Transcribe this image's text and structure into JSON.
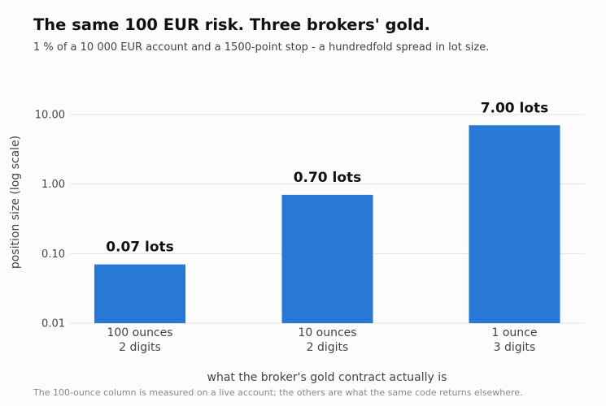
{
  "header": {
    "title": "The same 100 EUR risk. Three brokers' gold.",
    "subtitle": "1 % of a 10 000 EUR account and a 1500-point stop - a hundredfold spread in lot size."
  },
  "footnote": "The 100-ounce column is measured on a live account; the others are what the same code returns elsewhere.",
  "chart_data": {
    "type": "bar",
    "title": "The same 100 EUR risk. Three brokers' gold.",
    "subtitle": "1 % of a 10 000 EUR account and a 1500-point stop - a hundredfold spread in lot size.",
    "categories": [
      [
        "100 ounces",
        "2 digits"
      ],
      [
        "10 ounces",
        "2 digits"
      ],
      [
        "1 ounce",
        "3 digits"
      ]
    ],
    "values": [
      0.07,
      0.7,
      7.0
    ],
    "data_labels": [
      "0.07 lots",
      "0.70 lots",
      "7.00 lots"
    ],
    "xlabel": "what the broker's gold contract actually is",
    "ylabel": "position size (log scale)",
    "yscale": "log",
    "ylim": [
      0.01,
      14
    ],
    "yticks": [
      0.01,
      0.1,
      1,
      10
    ],
    "ytick_labels": [
      "0.01",
      "0.10",
      "1.00",
      "10.00"
    ],
    "grid": "horizontal",
    "bar_color": "#2878d6"
  }
}
